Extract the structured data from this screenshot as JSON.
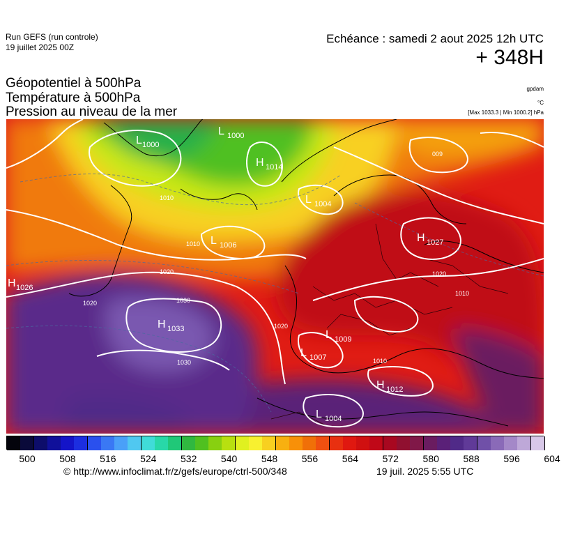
{
  "header": {
    "run": "Run GEFS (run controle)",
    "run_date": "19 juillet 2025 00Z",
    "echeance": "Echéance : samedi 2 aout 2025 12h UTC",
    "lead": "+ 348H"
  },
  "titles": {
    "line1": "Géopotentiel à 500hPa",
    "line2": "Température à 500hPa",
    "line3": "Pression au niveau de la mer"
  },
  "units": {
    "geopot": "gpdam",
    "temp": "°C",
    "pressure": "[Max 1033.3 | Min 1000.2] hPa"
  },
  "pressure_centers": [
    {
      "type": "H",
      "value": "1026",
      "name": "high-1026"
    },
    {
      "type": "H",
      "value": "1033",
      "name": "high-1033"
    },
    {
      "type": "L",
      "value": "1000",
      "name": "low-1000-west"
    },
    {
      "type": "L",
      "value": "1000",
      "name": "low-1000-north"
    },
    {
      "type": "H",
      "value": "1014",
      "name": "high-1014"
    },
    {
      "type": "L",
      "value": "1004",
      "name": "low-1004-norway"
    },
    {
      "type": "L",
      "value": "1006",
      "name": "low-1006"
    },
    {
      "type": "H",
      "value": "1027",
      "name": "high-1027"
    },
    {
      "type": "L",
      "value": "1009",
      "name": "low-1009"
    },
    {
      "type": "L",
      "value": "1007",
      "name": "low-1007"
    },
    {
      "type": "H",
      "value": "1012",
      "name": "high-1012"
    },
    {
      "type": "L",
      "value": "1004",
      "name": "low-1004-africa"
    }
  ],
  "isobar_labels": [
    "1010",
    "1020",
    "1020",
    "1030",
    "1030",
    "1020",
    "1020",
    "1010",
    "1010",
    "1010",
    "009"
  ],
  "colorbar": {
    "ticks": [
      "500",
      "508",
      "516",
      "524",
      "532",
      "540",
      "548",
      "556",
      "564",
      "572",
      "580",
      "588",
      "596",
      "604"
    ],
    "colors": [
      "#04040c",
      "#0a0a3a",
      "#0d0d6a",
      "#10109a",
      "#1414c8",
      "#1c2ee0",
      "#2a50ee",
      "#3a78f4",
      "#4aa0f8",
      "#50c8f0",
      "#40dcd8",
      "#28d8a8",
      "#20c878",
      "#30b840",
      "#50c020",
      "#88d010",
      "#b8e010",
      "#e0f020",
      "#f8f030",
      "#f8d020",
      "#f8b010",
      "#f89008",
      "#f07008",
      "#f05010",
      "#e83010",
      "#e01810",
      "#d01010",
      "#c00818",
      "#a80820",
      "#901030",
      "#801848",
      "#6a1c60",
      "#5a2078",
      "#502a88",
      "#603a98",
      "#7050a8",
      "#8a6ab8",
      "#a488c8",
      "#bea8d8",
      "#d8c8e8"
    ],
    "domain_min": 500,
    "domain_max": 604
  },
  "footer": {
    "url": "© http://www.infoclimat.fr/z/gefs/europe/ctrl-500/348",
    "created": "19 juil. 2025  5:55 UTC"
  }
}
